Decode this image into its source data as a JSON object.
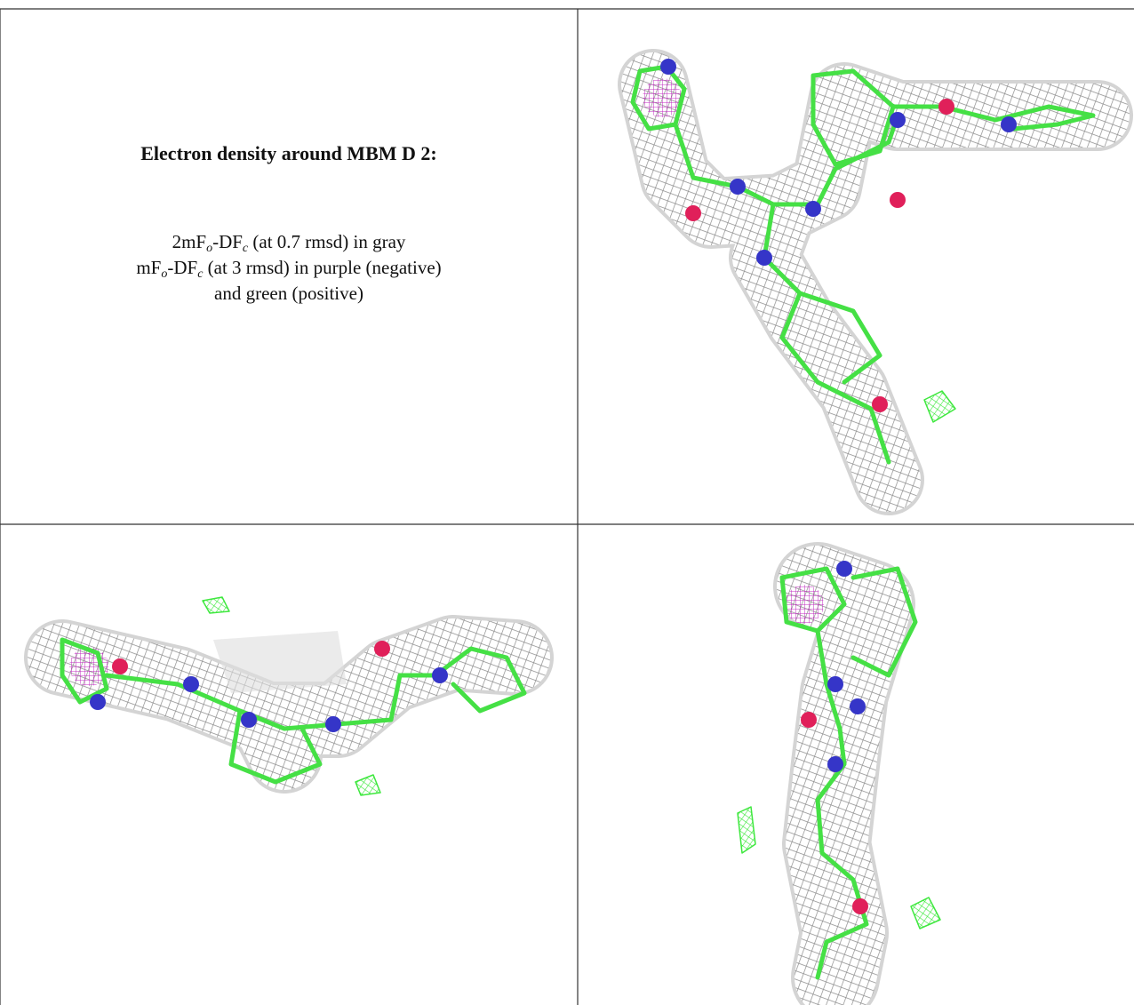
{
  "header": {
    "title": "Electron density around MBM D 2:"
  },
  "legend": {
    "lines": [
      [
        {
          "text": "2mF"
        },
        {
          "text": "o",
          "sub": true
        },
        {
          "text": "-DF"
        },
        {
          "text": "c",
          "sub": true
        },
        {
          "text": " (at 0.7 rmsd) in gray"
        }
      ],
      [
        {
          "text": "mF"
        },
        {
          "text": "o",
          "sub": true
        },
        {
          "text": "-DF"
        },
        {
          "text": "c",
          "sub": true
        },
        {
          "text": " (at 3 rmsd) in purple (negative)"
        }
      ],
      [
        {
          "text": "and green (positive)"
        }
      ]
    ]
  }
}
